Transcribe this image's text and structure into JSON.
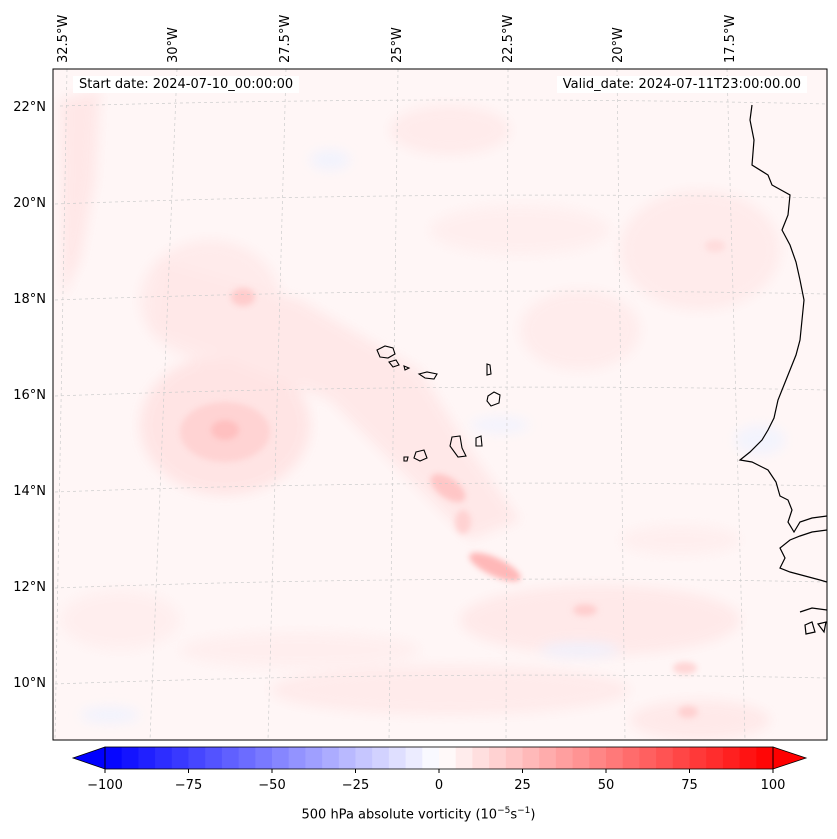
{
  "map": {
    "start_date": "Start date: 2024-07-10_00:00:00",
    "valid_date": "Valid_date: 2024-07-11T23:00:00.00",
    "lon_labels": [
      "32.5°W",
      "30°W",
      "27.5°W",
      "25°W",
      "22.5°W",
      "20°W",
      "17.5°W"
    ],
    "lat_labels": [
      "22°N",
      "20°N",
      "18°N",
      "16°N",
      "14°N",
      "12°N",
      "10°N"
    ],
    "colors": {
      "positive": "#ff0000",
      "negative": "#0000ff",
      "land_outline": "#000000",
      "background": "#fff5f5"
    }
  },
  "colorbar": {
    "ticks": [
      "−100",
      "−75",
      "−50",
      "−25",
      "0",
      "25",
      "50",
      "75",
      "100"
    ],
    "label_prefix": "500 hPa absolute vorticity (10",
    "label_exp1": "−5",
    "label_mid": "s",
    "label_exp2": "−1",
    "label_suffix": ")"
  }
}
